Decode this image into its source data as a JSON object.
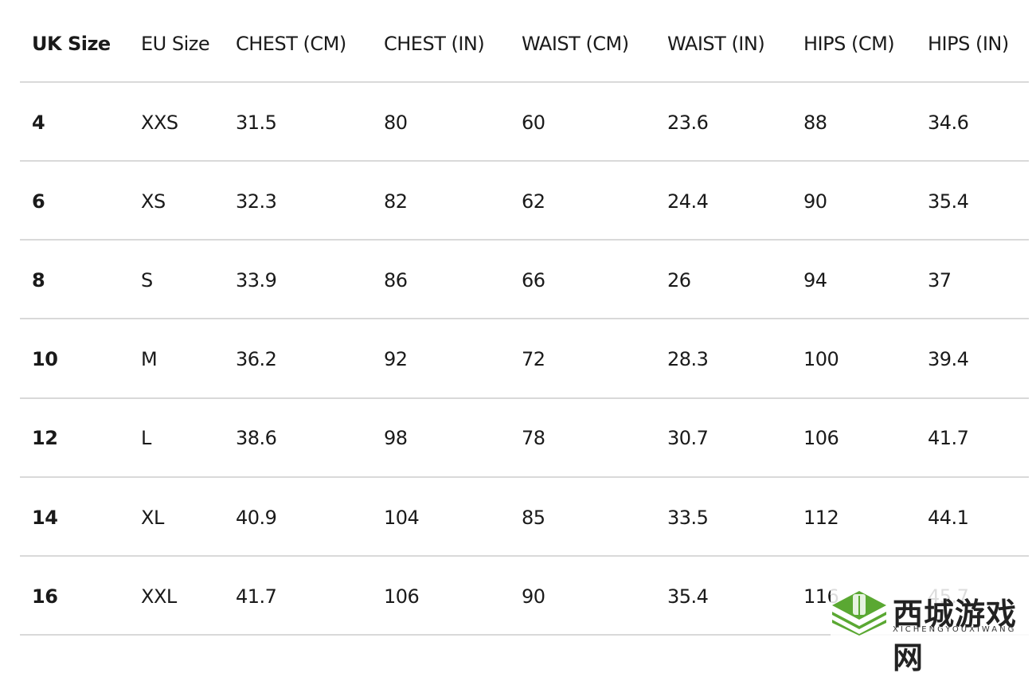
{
  "table": {
    "headers": [
      "UK Size",
      "EU Size",
      "CHEST (CM)",
      "CHEST (IN)",
      "WAIST (CM)",
      "WAIST (IN)",
      "HIPS (CM)",
      "HIPS (IN)"
    ],
    "rows": [
      [
        "4",
        "XXS",
        "31.5",
        "80",
        "60",
        "23.6",
        "88",
        "34.6"
      ],
      [
        "6",
        "XS",
        "32.3",
        "82",
        "62",
        "24.4",
        "90",
        "35.4"
      ],
      [
        "8",
        "S",
        "33.9",
        "86",
        "66",
        "26",
        "94",
        "37"
      ],
      [
        "10",
        "M",
        "36.2",
        "92",
        "72",
        "28.3",
        "100",
        "39.4"
      ],
      [
        "12",
        "L",
        "38.6",
        "98",
        "78",
        "30.7",
        "106",
        "41.7"
      ],
      [
        "14",
        "XL",
        "40.9",
        "104",
        "85",
        "33.5",
        "112",
        "44.1"
      ],
      [
        "16",
        "XXL",
        "41.7",
        "106",
        "90",
        "35.4",
        "116",
        "45.7"
      ]
    ]
  },
  "watermark": {
    "title": "西城游戏网",
    "subtitle": "XICHENGYOUXIWANG",
    "color": "#5aa832"
  }
}
